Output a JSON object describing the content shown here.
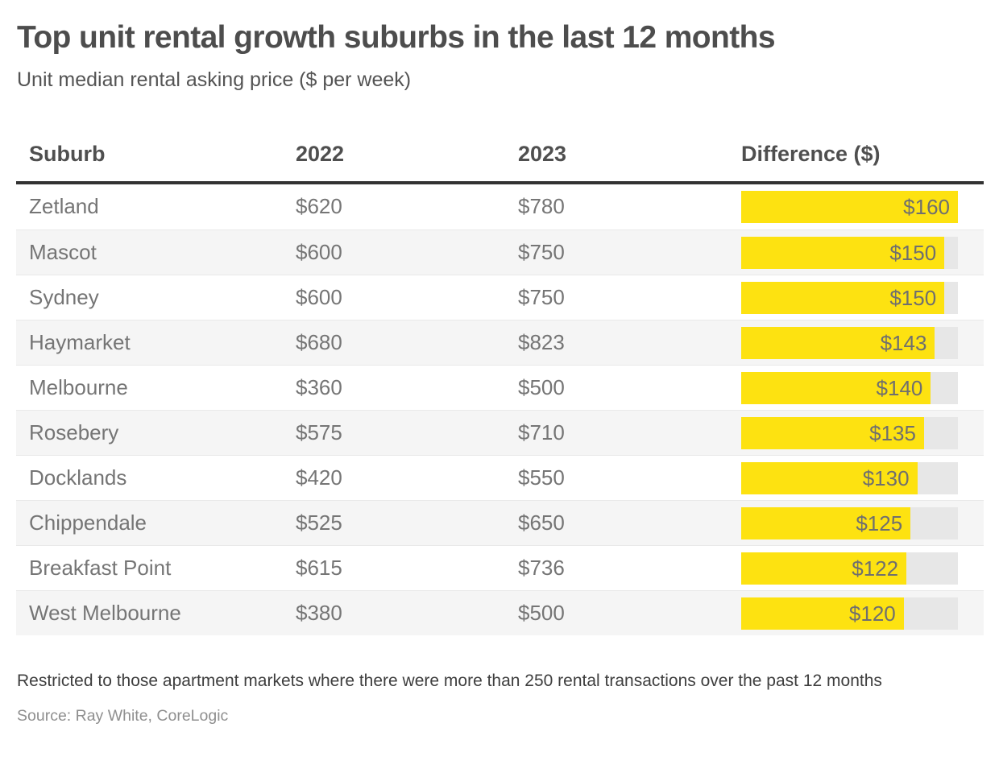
{
  "header": {
    "title": "Top unit rental growth suburbs in the last 12 months",
    "subtitle": "Unit median rental asking price ($ per week)"
  },
  "table": {
    "columns": [
      "Suburb",
      "2022",
      "2023",
      "Difference ($)"
    ],
    "bar_max": 160,
    "rows": [
      {
        "suburb": "Zetland",
        "y2022": "$620",
        "y2023": "$780",
        "diff": 160,
        "diff_label": "$160"
      },
      {
        "suburb": "Mascot",
        "y2022": "$600",
        "y2023": "$750",
        "diff": 150,
        "diff_label": "$150"
      },
      {
        "suburb": "Sydney",
        "y2022": "$600",
        "y2023": "$750",
        "diff": 150,
        "diff_label": "$150"
      },
      {
        "suburb": "Haymarket",
        "y2022": "$680",
        "y2023": "$823",
        "diff": 143,
        "diff_label": "$143"
      },
      {
        "suburb": "Melbourne",
        "y2022": "$360",
        "y2023": "$500",
        "diff": 140,
        "diff_label": "$140"
      },
      {
        "suburb": "Rosebery",
        "y2022": "$575",
        "y2023": "$710",
        "diff": 135,
        "diff_label": "$135"
      },
      {
        "suburb": "Docklands",
        "y2022": "$420",
        "y2023": "$550",
        "diff": 130,
        "diff_label": "$130"
      },
      {
        "suburb": "Chippendale",
        "y2022": "$525",
        "y2023": "$650",
        "diff": 125,
        "diff_label": "$125"
      },
      {
        "suburb": "Breakfast Point",
        "y2022": "$615",
        "y2023": "$736",
        "diff": 122,
        "diff_label": "$122"
      },
      {
        "suburb": "West Melbourne",
        "y2022": "$380",
        "y2023": "$500",
        "diff": 120,
        "diff_label": "$120"
      }
    ]
  },
  "footer": {
    "note": "Restricted to those apartment markets where there were more than 250 rental transactions over the past 12 months",
    "source": "Source: Ray White, CoreLogic"
  },
  "colors": {
    "accent_yellow": "#fde211",
    "bar_track": "#e7e7e7",
    "row_alt": "#f5f5f5",
    "header_rule": "#323232"
  },
  "chart_data": {
    "type": "table",
    "title": "Top unit rental growth suburbs in the last 12 months",
    "subtitle": "Unit median rental asking price ($ per week)",
    "columns": [
      "Suburb",
      "2022",
      "2023",
      "Difference ($)"
    ],
    "categories": [
      "Zetland",
      "Mascot",
      "Sydney",
      "Haymarket",
      "Melbourne",
      "Rosebery",
      "Docklands",
      "Chippendale",
      "Breakfast Point",
      "West Melbourne"
    ],
    "series": [
      {
        "name": "2022",
        "values": [
          620,
          600,
          600,
          680,
          360,
          575,
          420,
          525,
          615,
          380
        ]
      },
      {
        "name": "2023",
        "values": [
          780,
          750,
          750,
          823,
          500,
          710,
          550,
          650,
          736,
          500
        ]
      },
      {
        "name": "Difference ($)",
        "values": [
          160,
          150,
          150,
          143,
          140,
          135,
          130,
          125,
          122,
          120
        ]
      }
    ],
    "bar_series": "Difference ($)",
    "bar_axis_range": [
      0,
      160
    ],
    "legend_position": "none",
    "grid": false
  }
}
